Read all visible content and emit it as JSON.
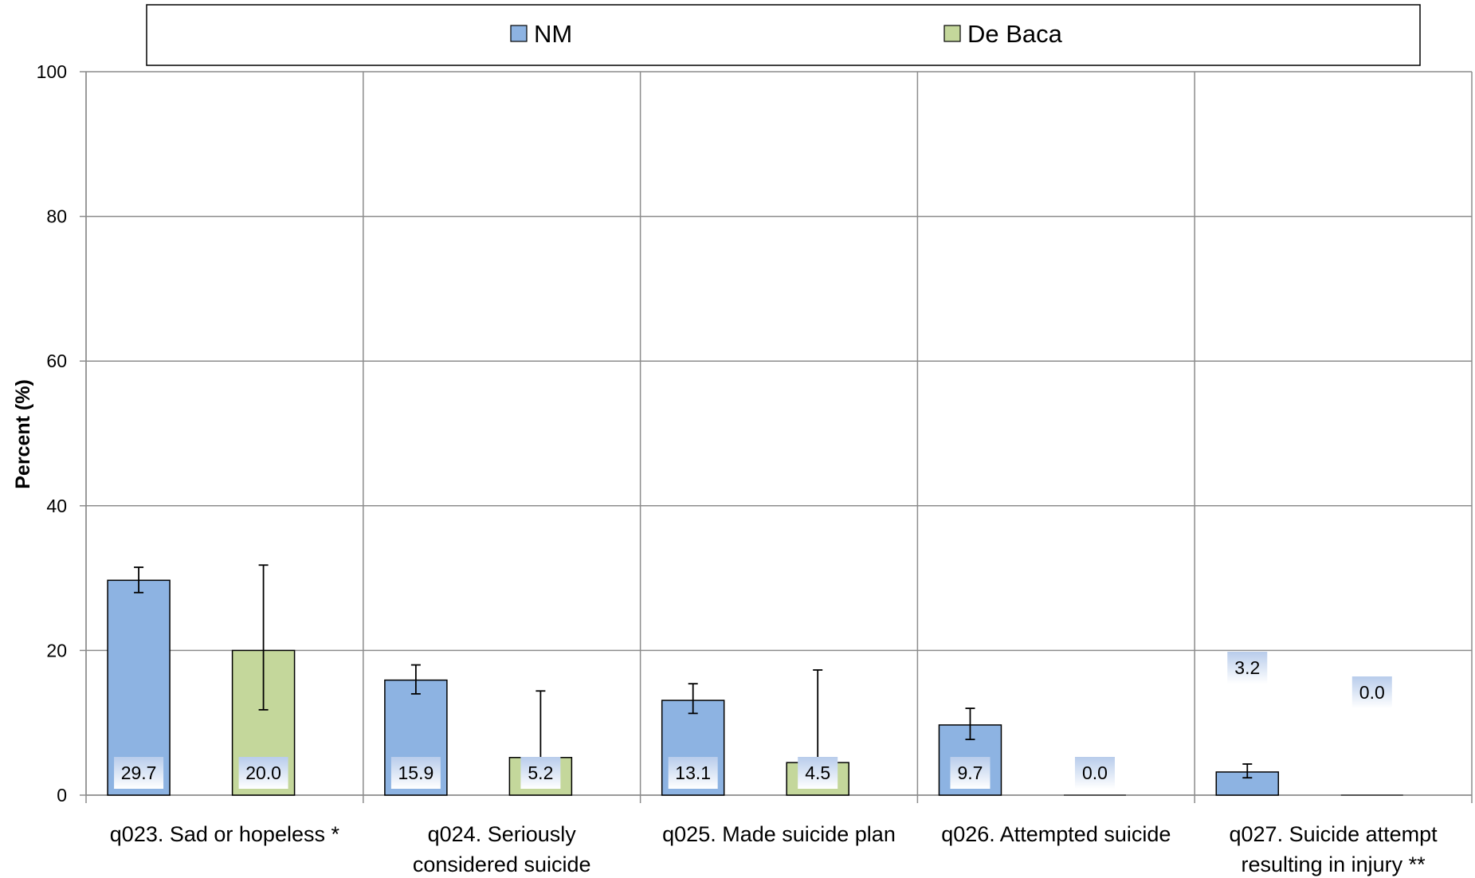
{
  "chart_data": {
    "type": "bar",
    "ylabel": "Percent (%)",
    "ylim": [
      0,
      100
    ],
    "yticks": [
      0,
      20,
      40,
      60,
      80,
      100
    ],
    "grid": true,
    "legend_position": "top",
    "categories": [
      [
        "q023. Sad or hopeless *"
      ],
      [
        "q024. Seriously",
        "considered suicide"
      ],
      [
        "q025. Made suicide plan"
      ],
      [
        "q026. Attempted suicide"
      ],
      [
        "q027. Suicide attempt",
        "resulting in injury **"
      ]
    ],
    "series": [
      {
        "name": "NM",
        "color": "#8DB3E2",
        "values": [
          29.7,
          15.9,
          13.1,
          9.7,
          3.2
        ],
        "labels": [
          "29.7",
          "15.9",
          "13.1",
          "9.7",
          "3.2"
        ],
        "error_low": [
          28.0,
          14.0,
          11.3,
          7.7,
          2.4
        ],
        "error_high": [
          31.5,
          18.0,
          15.4,
          12.0,
          4.3
        ]
      },
      {
        "name": "De Baca",
        "color": "#C4D79B",
        "values": [
          20.0,
          5.2,
          4.5,
          0.0,
          0.0
        ],
        "labels": [
          "20.0",
          "5.2",
          "4.5",
          "0.0",
          "0.0"
        ],
        "error_low": [
          11.8,
          null,
          null,
          null,
          null
        ],
        "error_high": [
          31.8,
          14.4,
          17.3,
          null,
          null
        ]
      }
    ]
  }
}
